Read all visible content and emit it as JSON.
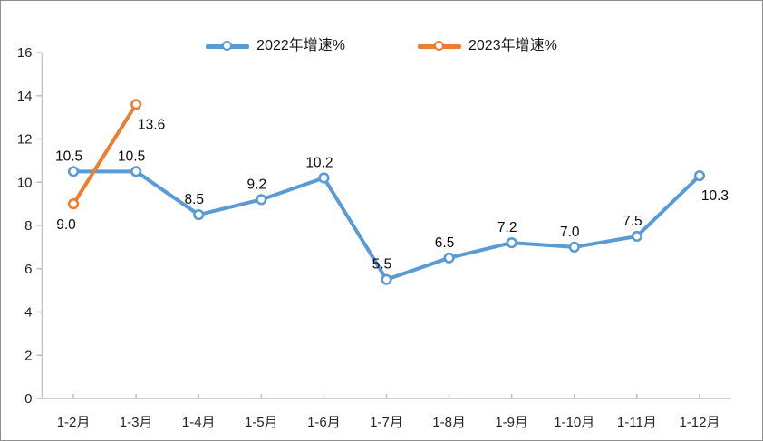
{
  "chart_data": {
    "type": "line",
    "title": "",
    "xlabel": "",
    "ylabel": "",
    "categories": [
      "1-2月",
      "1-3月",
      "1-4月",
      "1-5月",
      "1-6月",
      "1-7月",
      "1-8月",
      "1-9月",
      "1-10月",
      "1-11月",
      "1-12月"
    ],
    "series": [
      {
        "name": "2022年增速%",
        "color": "#5B9BD5",
        "values": [
          10.5,
          10.5,
          8.5,
          9.2,
          10.2,
          5.5,
          6.5,
          7.2,
          7.0,
          7.5,
          10.3
        ],
        "point_labels": [
          "10.5",
          "10.5",
          "8.5",
          "9.2",
          "10.2",
          "5.5",
          "6.5",
          "7.2",
          "7.0",
          "7.5",
          "10.3"
        ],
        "label_positions": [
          "above",
          "above",
          "above",
          "above",
          "above",
          "above",
          "above",
          "above",
          "above",
          "above",
          "below-right"
        ]
      },
      {
        "name": "2023年增速%",
        "color": "#ED7D31",
        "values": [
          9.0,
          13.6
        ],
        "point_labels": [
          "9.0",
          "13.6"
        ],
        "label_positions": [
          "below-left",
          "below-right"
        ]
      }
    ],
    "ylim": [
      0,
      16
    ],
    "y_ticks": [
      0,
      2,
      4,
      6,
      8,
      10,
      12,
      14,
      16
    ],
    "y_tick_labels": [
      "0",
      "2",
      "4",
      "6",
      "8",
      "10",
      "12",
      "14",
      "16"
    ],
    "grid": "off",
    "legend_position": "top-center"
  },
  "style_colors": {
    "frame_border": "#8E8E8E",
    "background": "#FFFFFF",
    "axis_line": "#BFBFBF",
    "axis_text": "#262626",
    "data_label_text": "#0A0A0A",
    "legend_text": "#1A1A1A",
    "marker_fill": "#FFFFFF"
  }
}
